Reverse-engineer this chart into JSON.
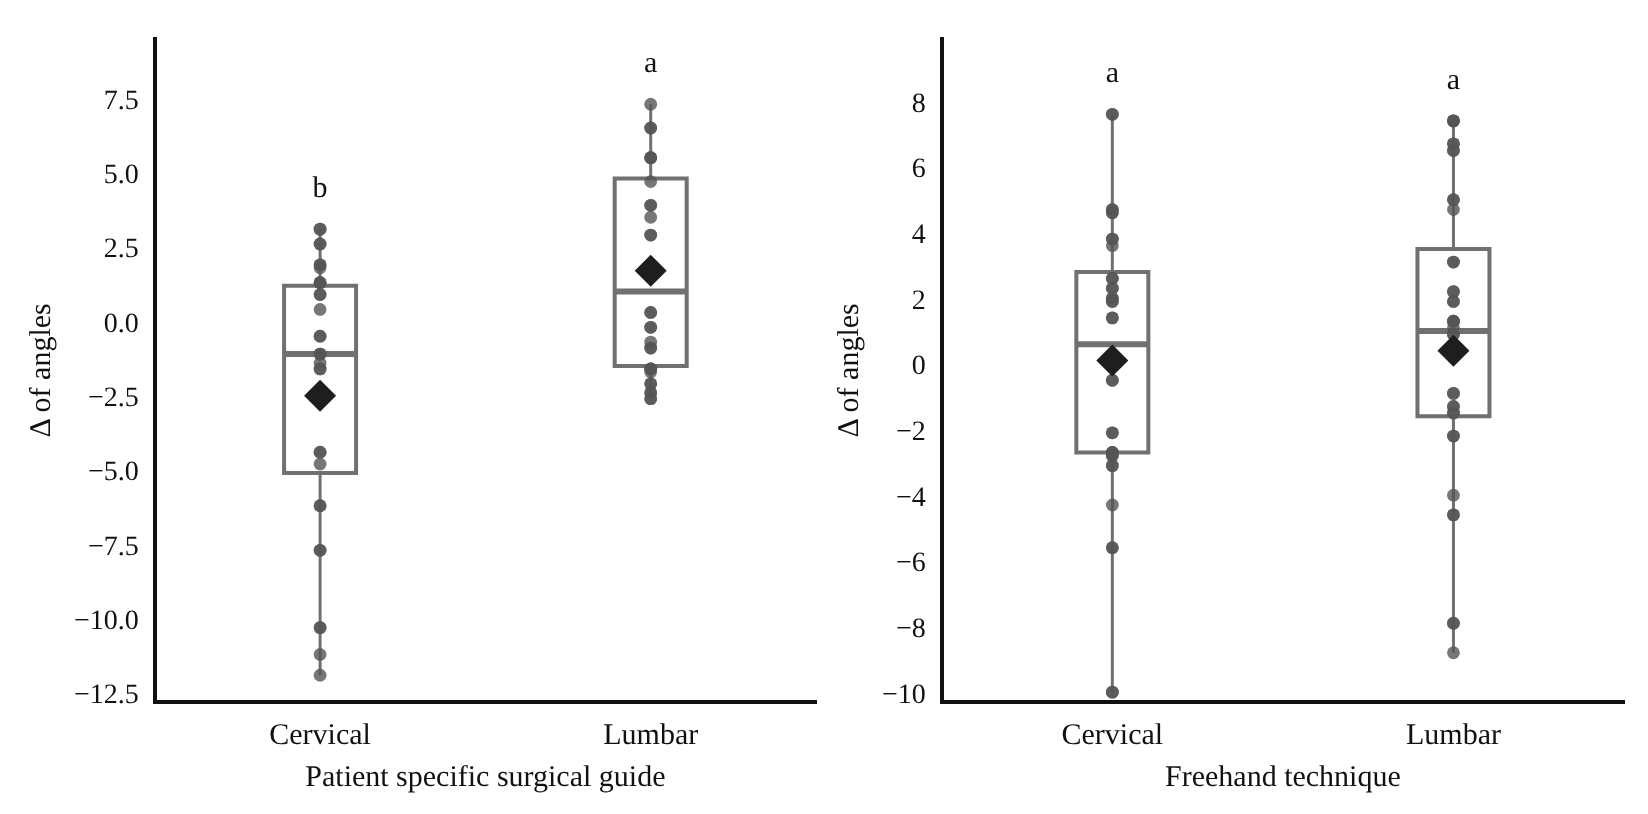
{
  "chart_data": [
    {
      "type": "box",
      "categories": [
        "Cervical",
        "Lumbar"
      ],
      "xlabel": "Patient specific surgical guide",
      "ylabel": "Δ of angles",
      "ylim": [
        -12.7,
        9.6
      ],
      "yticks": [
        {
          "value": -12.5,
          "label": "−12.5"
        },
        {
          "value": -10,
          "label": "−10.0"
        },
        {
          "value": -7.5,
          "label": "−7.5"
        },
        {
          "value": -5,
          "label": "−5.0"
        },
        {
          "value": -2.5,
          "label": "−2.5"
        },
        {
          "value": 0,
          "label": "0.0"
        },
        {
          "value": 2.5,
          "label": "2.5"
        },
        {
          "value": 5,
          "label": "5.0"
        },
        {
          "value": 7.5,
          "label": "7.5"
        }
      ],
      "boxes": [
        {
          "low": -11.8,
          "q1": -5.0,
          "median": -1.0,
          "q3": 1.3,
          "high": 3.2,
          "mean": -2.4
        },
        {
          "low": -2.5,
          "q1": -1.4,
          "median": 1.1,
          "q3": 4.9,
          "high": 7.4,
          "mean": 1.8
        }
      ],
      "series": [
        {
          "type": "scatter",
          "color": "#555555",
          "x": [
            "Cervical",
            "Cervical",
            "Cervical",
            "Cervical",
            "Cervical",
            "Cervical",
            "Cervical",
            "Cervical",
            "Cervical",
            "Cervical",
            "Cervical",
            "Cervical",
            "Cervical",
            "Cervical",
            "Cervical",
            "Cervical",
            "Cervical",
            "Cervical",
            "Cervical",
            "Cervical",
            "Cervical",
            "Cervical",
            "Cervical",
            "Cervical",
            "Cervical",
            "Cervical",
            "Cervical",
            "Cervical",
            "Cervical",
            "Cervical",
            "Cervical",
            "Cervical",
            "Lumbar",
            "Lumbar",
            "Lumbar",
            "Lumbar",
            "Lumbar",
            "Lumbar",
            "Lumbar",
            "Lumbar",
            "Lumbar",
            "Lumbar",
            "Lumbar",
            "Lumbar",
            "Lumbar",
            "Lumbar",
            "Lumbar",
            "Lumbar",
            "Lumbar",
            "Lumbar",
            "Lumbar",
            "Lumbar",
            "Lumbar",
            "Lumbar",
            "Lumbar",
            "Lumbar",
            "Lumbar",
            "Lumbar",
            "Lumbar",
            "Lumbar",
            "Lumbar",
            "Lumbar"
          ],
          "values": [
            3.2,
            3.2,
            2.7,
            2.7,
            2.0,
            2.0,
            1.9,
            1.4,
            1.4,
            1.4,
            1.0,
            1.0,
            0.5,
            -0.4,
            -0.4,
            -1.0,
            -1.0,
            -1.0,
            -1.3,
            -1.5,
            -1.5,
            -4.3,
            -4.3,
            -4.7,
            -6.1,
            -6.1,
            -7.6,
            -7.6,
            -10.2,
            -10.2,
            -11.1,
            -11.8,
            7.4,
            6.6,
            6.6,
            5.6,
            5.6,
            5.6,
            4.0,
            4.0,
            3.6,
            3.0,
            3.0,
            null,
            0.4,
            0.4,
            -0.1,
            -0.1,
            -0.6,
            -0.8,
            -0.8,
            -1.5,
            -1.5,
            -1.5,
            -1.6,
            -2.0,
            -2.0,
            -2.3,
            -2.3,
            -2.5,
            -2.5,
            4.8
          ]
        }
      ],
      "annotations": [
        "b",
        "a"
      ],
      "grid": false,
      "legend": false,
      "marker": "circle"
    },
    {
      "type": "box",
      "categories": [
        "Cervical",
        "Lumbar"
      ],
      "xlabel": "Freehand technique",
      "ylabel": "Δ of angles",
      "ylim": [
        -10.2,
        10
      ],
      "yticks": [
        {
          "value": -10,
          "label": "−10"
        },
        {
          "value": -8,
          "label": "−8"
        },
        {
          "value": -6,
          "label": "−6"
        },
        {
          "value": -4,
          "label": "−4"
        },
        {
          "value": -2,
          "label": "−2"
        },
        0,
        2,
        4,
        6,
        8
      ],
      "boxes": [
        {
          "low": -9.9,
          "q1": -2.6,
          "median": 0.7,
          "q3": 2.9,
          "high": 7.7,
          "mean": 0.2
        },
        {
          "low": -8.7,
          "q1": -1.5,
          "median": 1.1,
          "q3": 3.6,
          "high": 7.5,
          "mean": 0.5
        }
      ],
      "series": [
        {
          "type": "scatter",
          "color": "#555555",
          "x": [
            "Cervical",
            "Cervical",
            "Cervical",
            "Cervical",
            "Cervical",
            "Cervical",
            "Cervical",
            "Cervical",
            "Cervical",
            "Cervical",
            "Cervical",
            "Cervical",
            "Cervical",
            "Cervical",
            "Cervical",
            "Cervical",
            "Cervical",
            "Cervical",
            "Cervical",
            "Cervical",
            "Cervical",
            "Cervical",
            "Cervical",
            "Cervical",
            "Cervical",
            "Cervical",
            "Cervical",
            "Cervical",
            "Cervical",
            "Cervical",
            "Cervical",
            "Cervical",
            "Cervical",
            "Cervical",
            "Cervical",
            "Cervical",
            "Lumbar",
            "Lumbar",
            "Lumbar",
            "Lumbar",
            "Lumbar",
            "Lumbar",
            "Lumbar",
            "Lumbar",
            "Lumbar",
            "Lumbar",
            "Lumbar",
            "Lumbar",
            "Lumbar",
            "Lumbar",
            "Lumbar",
            "Lumbar",
            "Lumbar",
            "Lumbar",
            "Lumbar",
            "Lumbar",
            "Lumbar",
            "Lumbar",
            "Lumbar",
            "Lumbar",
            "Lumbar",
            "Lumbar",
            "Lumbar",
            "Lumbar",
            "Lumbar",
            "Lumbar",
            "Lumbar",
            "Lumbar",
            "Lumbar",
            "Lumbar",
            "Lumbar",
            "Lumbar"
          ],
          "values": [
            7.7,
            7.7,
            4.8,
            4.8,
            4.7,
            4.7,
            3.9,
            3.9,
            3.7,
            2.7,
            2.7,
            2.4,
            2.4,
            2.1,
            2.1,
            2.0,
            2.0,
            1.5,
            1.5,
            null,
            -0.4,
            -0.4,
            -2.0,
            -2.0,
            -2.6,
            -2.6,
            -2.6,
            -2.7,
            -2.7,
            -3.0,
            -3.0,
            -4.2,
            -5.5,
            -5.5,
            -9.9,
            -9.9,
            7.5,
            7.5,
            6.8,
            6.8,
            6.6,
            6.6,
            5.1,
            5.1,
            4.8,
            3.2,
            3.2,
            2.3,
            2.3,
            2.0,
            2.0,
            1.4,
            1.4,
            1.2,
            1.0,
            1.0,
            -0.8,
            -0.8,
            -1.2,
            -1.2,
            -1.4,
            -1.4,
            -2.1,
            -2.1,
            -3.9,
            -4.5,
            -4.5,
            -7.8,
            -7.8,
            -8.7,
            7.5,
            1.4
          ]
        }
      ],
      "annotations": [
        "a",
        "a"
      ],
      "grid": false,
      "legend": false,
      "marker": "circle"
    }
  ]
}
